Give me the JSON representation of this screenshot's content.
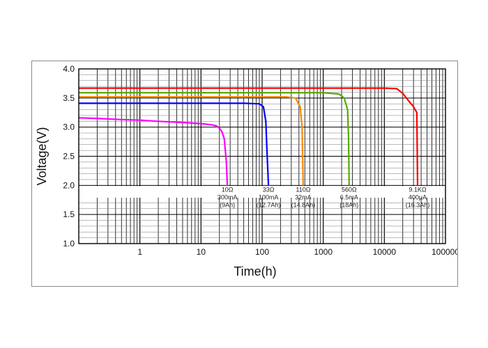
{
  "chart_data": {
    "type": "line",
    "title": "",
    "xlabel": "Time(h)",
    "ylabel": "Voltage(V)",
    "xscale": "log",
    "xlim": [
      0.1,
      100000
    ],
    "ylim": [
      1.0,
      4.0
    ],
    "x_ticks": [
      "1",
      "10",
      "100",
      "1000",
      "10000",
      "100000"
    ],
    "y_ticks": [
      "1.0",
      "1.5",
      "2.0",
      "2.5",
      "3.0",
      "3.5",
      "4.0"
    ],
    "grid": true,
    "legend": "none",
    "series": [
      {
        "color": "#ff00ff",
        "points": [
          [
            0.1,
            3.16
          ],
          [
            0.2,
            3.15
          ],
          [
            0.5,
            3.13
          ],
          [
            1,
            3.12
          ],
          [
            2,
            3.1
          ],
          [
            5,
            3.08
          ],
          [
            10,
            3.06
          ],
          [
            15,
            3.04
          ],
          [
            18,
            3.02
          ],
          [
            20,
            2.98
          ],
          [
            22,
            2.92
          ],
          [
            24,
            2.8
          ],
          [
            25,
            2.6
          ],
          [
            26,
            2.4
          ],
          [
            27,
            2.0
          ]
        ]
      },
      {
        "color": "#0000ff",
        "points": [
          [
            0.1,
            3.41
          ],
          [
            1,
            3.41
          ],
          [
            10,
            3.41
          ],
          [
            50,
            3.41
          ],
          [
            90,
            3.4
          ],
          [
            105,
            3.35
          ],
          [
            115,
            3.1
          ],
          [
            120,
            2.6
          ],
          [
            127,
            2.0
          ]
        ]
      },
      {
        "color": "#ff8800",
        "points": [
          [
            0.1,
            3.52
          ],
          [
            1,
            3.52
          ],
          [
            10,
            3.52
          ],
          [
            100,
            3.52
          ],
          [
            250,
            3.52
          ],
          [
            350,
            3.5
          ],
          [
            420,
            3.35
          ],
          [
            450,
            3.0
          ],
          [
            470,
            2.0
          ]
        ]
      },
      {
        "color": "#55aa00",
        "points": [
          [
            0.1,
            3.59
          ],
          [
            1,
            3.59
          ],
          [
            10,
            3.59
          ],
          [
            100,
            3.59
          ],
          [
            1000,
            3.59
          ],
          [
            1800,
            3.57
          ],
          [
            2200,
            3.5
          ],
          [
            2500,
            3.3
          ],
          [
            2600,
            2.8
          ],
          [
            2650,
            2.0
          ]
        ]
      },
      {
        "color": "#ff0000",
        "points": [
          [
            0.1,
            3.67
          ],
          [
            1,
            3.67
          ],
          [
            10,
            3.67
          ],
          [
            100,
            3.67
          ],
          [
            1000,
            3.67
          ],
          [
            10000,
            3.67
          ],
          [
            16000,
            3.66
          ],
          [
            20000,
            3.58
          ],
          [
            25000,
            3.45
          ],
          [
            30000,
            3.35
          ],
          [
            34000,
            3.25
          ],
          [
            35000,
            2.0
          ]
        ]
      }
    ],
    "annotations": [
      {
        "lines": [
          "10Ω",
          "300mA",
          "(9Ah)"
        ],
        "x": 27
      },
      {
        "lines": [
          "33Ω",
          "100mA",
          "(12.7Ah)"
        ],
        "x": 127
      },
      {
        "lines": [
          "110Ω",
          "32mA",
          "(14.8Ah)"
        ],
        "x": 470
      },
      {
        "lines": [
          "560Ω",
          "6.5mA",
          "(18Ah)"
        ],
        "x": 2650
      },
      {
        "lines": [
          "9.1KΩ",
          "400μA",
          "(16.3Ah)"
        ],
        "x": 35000
      }
    ]
  }
}
